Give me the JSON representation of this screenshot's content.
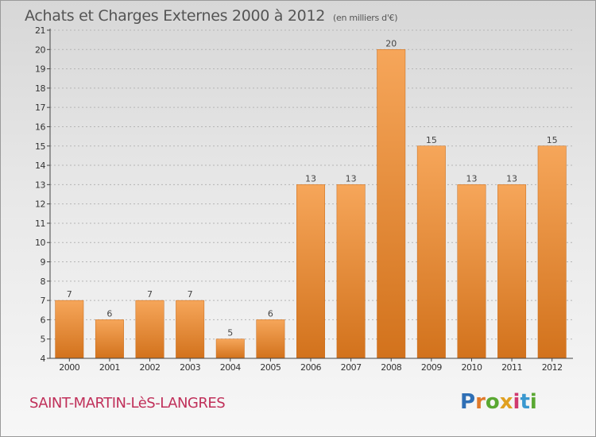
{
  "title": "Achats et Charges Externes 2000 à 2012",
  "subtitle": "(en milliers d'€)",
  "commune": "SAINT-MARTIN-LèS-LANGRES",
  "logo": {
    "letters": [
      "P",
      "r",
      "o",
      "x",
      "i",
      "t",
      "i"
    ],
    "colors": [
      "#2f6fb5",
      "#e0792a",
      "#5aa832",
      "#e0a020",
      "#d03a70",
      "#3a98cf",
      "#5aa832"
    ]
  },
  "colors": {
    "bar_top": "#f6a65a",
    "bar_bottom": "#d2721c",
    "bar_stroke": "#c86a18",
    "axis": "#444444",
    "grid": "#b5b5b5"
  },
  "chart_data": {
    "type": "bar",
    "title": "Achats et Charges Externes 2000 à 2012",
    "subtitle": "(en milliers d'€)",
    "xlabel": "",
    "ylabel": "",
    "categories": [
      "2000",
      "2001",
      "2002",
      "2003",
      "2004",
      "2005",
      "2006",
      "2007",
      "2008",
      "2009",
      "2010",
      "2011",
      "2012"
    ],
    "values": [
      7,
      6,
      7,
      7,
      5,
      6,
      13,
      13,
      20,
      15,
      13,
      13,
      15
    ],
    "ylim": [
      4,
      21
    ],
    "yticks": [
      4,
      5,
      6,
      7,
      8,
      9,
      10,
      11,
      12,
      13,
      14,
      15,
      16,
      17,
      18,
      19,
      20,
      21
    ],
    "grid": true,
    "data_labels": true,
    "legend": "none"
  }
}
